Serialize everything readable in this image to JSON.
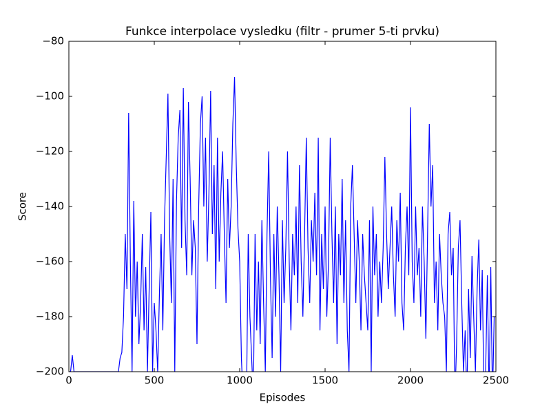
{
  "chart_data": {
    "type": "line",
    "title": "Funkce interpolace vysledku (filtr - prumer 5-ti prvku)",
    "xlabel": "Episodes",
    "ylabel": "Score",
    "xlim": [
      0,
      2500
    ],
    "ylim": [
      -200,
      -80
    ],
    "xticks": [
      0,
      500,
      1000,
      1500,
      2000,
      2500
    ],
    "yticks": [
      {
        "value": -200,
        "label": "−200"
      },
      {
        "value": -180,
        "label": "−180"
      },
      {
        "value": -160,
        "label": "−160"
      },
      {
        "value": -140,
        "label": "−140"
      },
      {
        "value": -120,
        "label": "−120"
      },
      {
        "value": -100,
        "label": "−100"
      },
      {
        "value": -80,
        "label": "−80"
      }
    ],
    "grid": false,
    "x": [
      0,
      10,
      20,
      30,
      40,
      50,
      60,
      70,
      80,
      90,
      100,
      110,
      120,
      130,
      140,
      150,
      160,
      170,
      180,
      190,
      200,
      210,
      220,
      230,
      240,
      250,
      260,
      270,
      280,
      290,
      300,
      310,
      320,
      330,
      340,
      350,
      360,
      370,
      380,
      390,
      400,
      410,
      420,
      430,
      440,
      450,
      460,
      470,
      480,
      490,
      500,
      510,
      520,
      530,
      540,
      550,
      560,
      570,
      580,
      590,
      600,
      610,
      620,
      630,
      640,
      650,
      660,
      670,
      680,
      690,
      700,
      710,
      720,
      730,
      740,
      750,
      760,
      770,
      780,
      790,
      800,
      810,
      820,
      830,
      840,
      850,
      860,
      870,
      880,
      890,
      900,
      910,
      920,
      930,
      940,
      950,
      960,
      970,
      980,
      990,
      1000,
      1010,
      1020,
      1030,
      1040,
      1050,
      1060,
      1070,
      1080,
      1090,
      1100,
      1110,
      1120,
      1130,
      1140,
      1150,
      1160,
      1170,
      1180,
      1190,
      1200,
      1210,
      1220,
      1230,
      1240,
      1250,
      1260,
      1270,
      1280,
      1290,
      1300,
      1310,
      1320,
      1330,
      1340,
      1350,
      1360,
      1370,
      1380,
      1390,
      1400,
      1410,
      1420,
      1430,
      1440,
      1450,
      1460,
      1470,
      1480,
      1490,
      1500,
      1510,
      1520,
      1530,
      1540,
      1550,
      1560,
      1570,
      1580,
      1590,
      1600,
      1610,
      1620,
      1630,
      1640,
      1650,
      1660,
      1670,
      1680,
      1690,
      1700,
      1710,
      1720,
      1730,
      1740,
      1750,
      1760,
      1770,
      1780,
      1790,
      1800,
      1810,
      1820,
      1830,
      1840,
      1850,
      1860,
      1870,
      1880,
      1890,
      1900,
      1910,
      1920,
      1930,
      1940,
      1950,
      1960,
      1970,
      1980,
      1990,
      2000,
      2010,
      2020,
      2030,
      2040,
      2050,
      2060,
      2070,
      2080,
      2090,
      2100,
      2110,
      2120,
      2130,
      2140,
      2150,
      2160,
      2170,
      2180,
      2190,
      2200,
      2210,
      2220,
      2230,
      2240,
      2250,
      2260,
      2270,
      2280,
      2290,
      2300,
      2310,
      2320,
      2330,
      2340,
      2350,
      2360,
      2370,
      2380,
      2390,
      2400,
      2410,
      2420,
      2430,
      2440,
      2450,
      2460,
      2470,
      2480,
      2490
    ],
    "series": [
      {
        "color": "#0000ff",
        "values": [
          -200,
          -200,
          -194,
          -200,
          -200,
          -200,
          -200,
          -200,
          -200,
          -200,
          -200,
          -200,
          -200,
          -200,
          -200,
          -200,
          -200,
          -200,
          -200,
          -200,
          -200,
          -200,
          -200,
          -200,
          -200,
          -200,
          -200,
          -200,
          -200,
          -200,
          -195,
          -193,
          -180,
          -150,
          -170,
          -106,
          -160,
          -200,
          -138,
          -180,
          -160,
          -190,
          -175,
          -150,
          -185,
          -162,
          -200,
          -170,
          -142,
          -200,
          -175,
          -185,
          -200,
          -172,
          -150,
          -185,
          -145,
          -122,
          -99,
          -150,
          -175,
          -130,
          -200,
          -138,
          -115,
          -105,
          -155,
          -97,
          -145,
          -165,
          -102,
          -130,
          -165,
          -145,
          -155,
          -190,
          -140,
          -110,
          -100,
          -140,
          -115,
          -160,
          -135,
          -98,
          -150,
          -125,
          -170,
          -115,
          -160,
          -135,
          -120,
          -150,
          -175,
          -130,
          -155,
          -140,
          -110,
          -93,
          -125,
          -148,
          -160,
          -195,
          -210,
          -210,
          -210,
          -150,
          -180,
          -195,
          -210,
          -150,
          -185,
          -160,
          -190,
          -145,
          -175,
          -200,
          -150,
          -120,
          -165,
          -195,
          -150,
          -180,
          -140,
          -165,
          -200,
          -145,
          -175,
          -155,
          -120,
          -160,
          -185,
          -150,
          -165,
          -140,
          -175,
          -125,
          -160,
          -180,
          -150,
          -115,
          -155,
          -175,
          -145,
          -160,
          -135,
          -165,
          -115,
          -185,
          -150,
          -170,
          -140,
          -180,
          -160,
          -115,
          -150,
          -175,
          -140,
          -190,
          -150,
          -165,
          -130,
          -175,
          -145,
          -185,
          -200,
          -140,
          -125,
          -150,
          -175,
          -145,
          -160,
          -185,
          -150,
          -165,
          -175,
          -185,
          -145,
          -200,
          -140,
          -165,
          -150,
          -180,
          -160,
          -175,
          -155,
          -122,
          -150,
          -170,
          -155,
          -140,
          -165,
          -180,
          -145,
          -160,
          -135,
          -175,
          -185,
          -155,
          -140,
          -165,
          -104,
          -160,
          -175,
          -140,
          -165,
          -155,
          -180,
          -140,
          -160,
          -188,
          -150,
          -110,
          -140,
          -125,
          -175,
          -160,
          -185,
          -150,
          -165,
          -175,
          -180,
          -200,
          -150,
          -142,
          -165,
          -155,
          -210,
          -190,
          -155,
          -145,
          -175,
          -200,
          -185,
          -210,
          -170,
          -195,
          -158,
          -180,
          -200,
          -170,
          -152,
          -185,
          -163,
          -210,
          -200,
          -165,
          -210,
          -162,
          -210,
          -180
        ]
      }
    ]
  }
}
